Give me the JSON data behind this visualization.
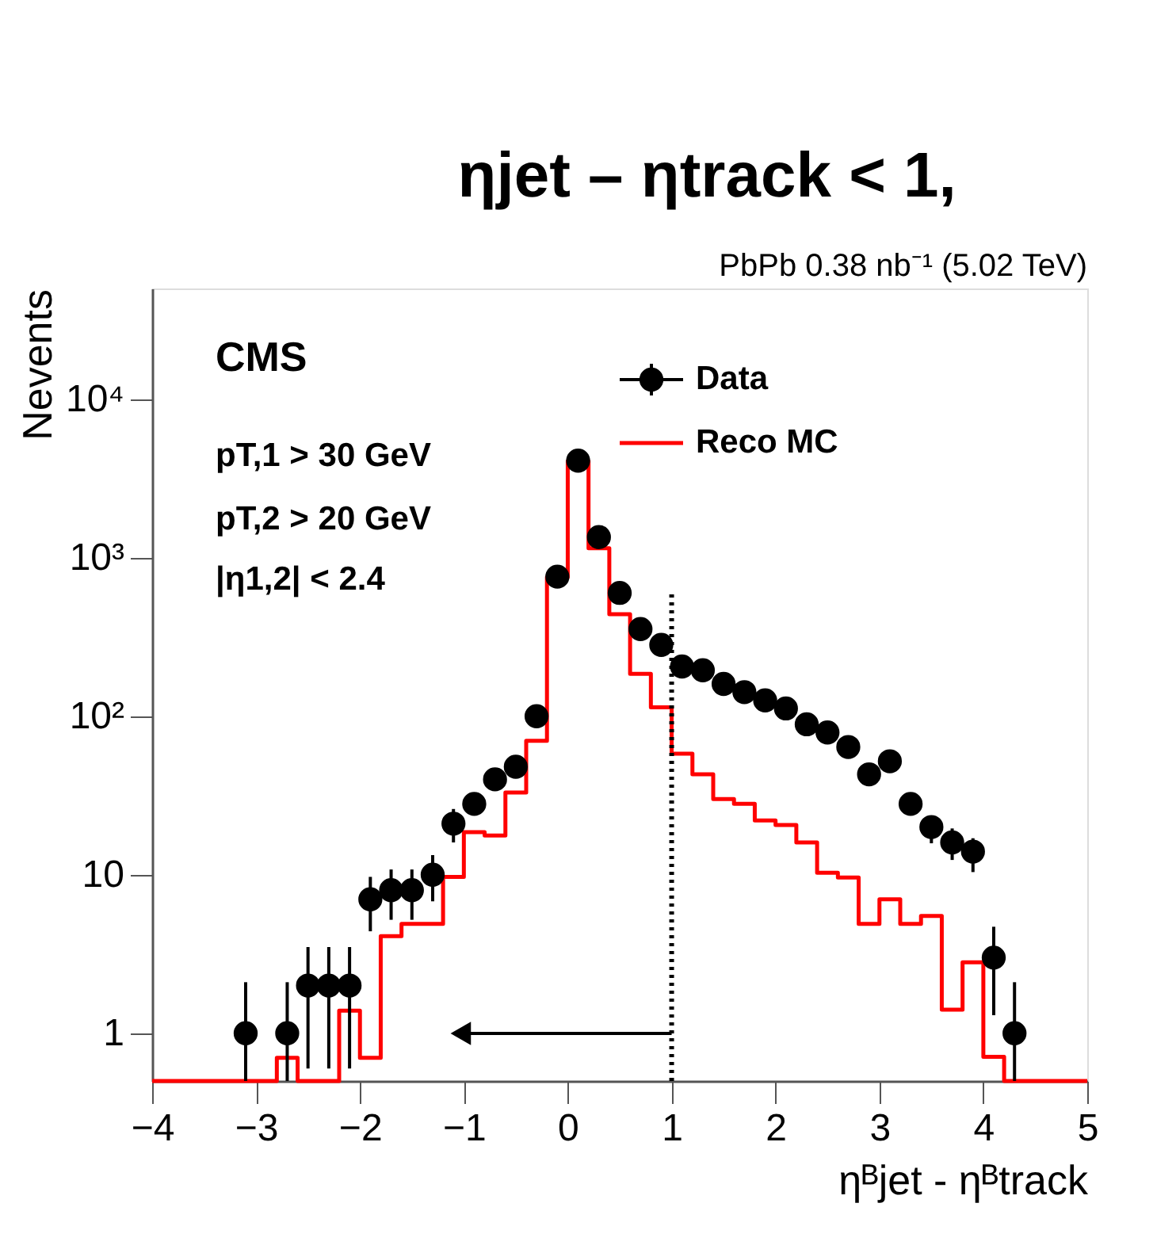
{
  "chart_data": {
    "type": "histogram",
    "title": "ηjet – ηtrack < 1,",
    "subtitle": "PbPb 0.38 nb⁻¹ (5.02 TeV)",
    "xlabel": "ηᴮjet - ηᴮtrack",
    "ylabel": "Nevents",
    "annotations": [
      "CMS",
      "pT,1 > 30 GeV",
      "pT,2 > 20 GeV",
      "|η1,2| < 2.4"
    ],
    "bins": [
      -4.0,
      -3.8,
      -3.6,
      -3.4,
      -3.2,
      -3.0,
      -2.8,
      -2.6,
      -2.4,
      -2.2,
      -2.0,
      -1.8,
      -1.6,
      -1.4,
      -1.2,
      -1.0,
      -0.8,
      -0.6,
      -0.4,
      -0.2,
      0.0,
      0.2,
      0.4,
      0.6,
      0.8,
      1.0,
      1.2,
      1.4,
      1.6,
      1.8,
      2.0,
      2.2,
      2.4,
      2.6,
      2.8,
      3.0,
      3.2,
      3.4,
      3.6,
      3.8,
      4.0,
      4.2,
      4.4,
      4.6,
      4.8,
      5.0
    ],
    "series": [
      {
        "name": "Data",
        "type": "scatter",
        "color": "#000000",
        "x": [
          -3.1,
          -2.7,
          -2.5,
          -2.3,
          -2.1,
          -1.9,
          -1.7,
          -1.5,
          -1.3,
          -1.1,
          -0.9,
          -0.7,
          -0.5,
          -0.3,
          -0.1,
          0.1,
          0.3,
          0.5,
          0.7,
          0.9,
          1.1,
          1.3,
          1.5,
          1.7,
          1.9,
          2.1,
          2.3,
          2.5,
          2.7,
          2.9,
          3.1,
          3.3,
          3.5,
          3.7,
          3.9,
          4.1,
          4.3
        ],
        "values": [
          1,
          1,
          2,
          2,
          2,
          7,
          8,
          8,
          10,
          21,
          28,
          40,
          48,
          100,
          760,
          4100,
          1350,
          600,
          355,
          282,
          206,
          195,
          160,
          142,
          126,
          112,
          89,
          79,
          64,
          43,
          52,
          28,
          20,
          16,
          14,
          3,
          1
        ],
        "errors": [
          [
            0.5,
            2.1
          ],
          [
            0.5,
            2.1
          ],
          [
            0.6,
            3.5
          ],
          [
            0.6,
            3.5
          ],
          [
            0.6,
            3.5
          ],
          [
            4.4,
            9.7
          ],
          [
            5.2,
            10.8
          ],
          [
            5.2,
            10.8
          ],
          [
            6.8,
            13.3
          ],
          [
            16,
            26
          ],
          null,
          null,
          null,
          null,
          null,
          null,
          null,
          null,
          null,
          null,
          null,
          null,
          null,
          null,
          null,
          null,
          null,
          null,
          null,
          null,
          null,
          null,
          [
            15.8,
            23
          ],
          [
            12.4,
            19.6
          ],
          [
            10.4,
            17
          ],
          [
            1.3,
            4.7
          ],
          [
            0.5,
            2.1
          ]
        ]
      },
      {
        "name": "Reco MC",
        "color": "#ff0000",
        "values": [
          null,
          null,
          null,
          null,
          null,
          null,
          0.7,
          null,
          null,
          1.39,
          0.7,
          4.1,
          4.9,
          4.9,
          9.7,
          18.6,
          17.7,
          33,
          70,
          755,
          4080,
          1150,
          440,
          185,
          114,
          58,
          43,
          30,
          28,
          22,
          20.6,
          16,
          10.3,
          9.6,
          4.9,
          7.0,
          4.9,
          5.5,
          1.41,
          2.8,
          0.71,
          null,
          null,
          null,
          null
        ]
      }
    ],
    "xlim": [
      -4,
      5
    ],
    "xticks": [
      -4,
      -3,
      -2,
      -1,
      0,
      1,
      2,
      3,
      4,
      5
    ],
    "ylim": [
      0.5,
      50000
    ],
    "yticks": [
      1,
      10,
      {
        "value": 100,
        "label": "10²"
      },
      {
        "value": 1000,
        "label": "10³"
      },
      {
        "value": 10000,
        "label": "10⁴"
      }
    ],
    "log": "y",
    "grid": false,
    "legend": "top right",
    "marker": "circle",
    "ref_lines": [
      {
        "axis": "x",
        "value": 1,
        "color": "#000000",
        "line_style": "dotted"
      }
    ]
  }
}
